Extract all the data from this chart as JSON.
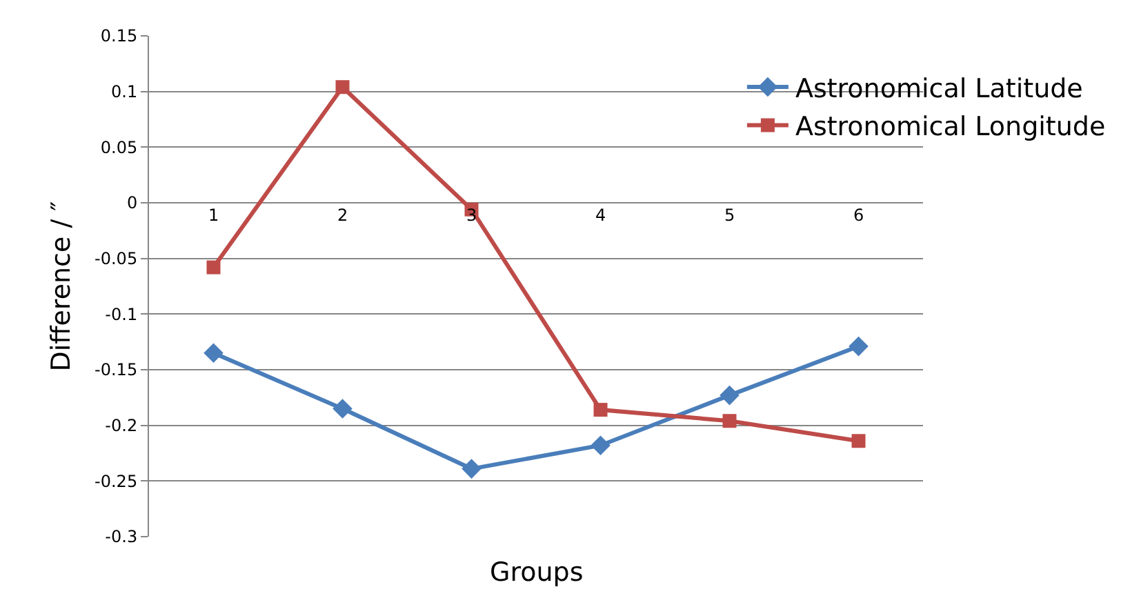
{
  "chart_data": {
    "type": "line",
    "xlabel": "Groups",
    "ylabel": "Difference / ″",
    "categories": [
      "1",
      "2",
      "3",
      "4",
      "5",
      "6"
    ],
    "series": [
      {
        "name": "Astronomical Latitude",
        "color": "#4a7ebb",
        "marker": "diamond",
        "values": [
          -0.135,
          -0.185,
          -0.239,
          -0.218,
          -0.173,
          -0.129
        ]
      },
      {
        "name": "Astronomical Longitude",
        "color": "#be4b48",
        "marker": "square",
        "values": [
          -0.058,
          0.104,
          -0.006,
          -0.186,
          -0.196,
          -0.214
        ]
      }
    ],
    "ylim": [
      -0.3,
      0.15
    ],
    "yticks": [
      -0.3,
      -0.25,
      -0.2,
      -0.15,
      -0.1,
      -0.05,
      0,
      0.05,
      0.1,
      0.15
    ],
    "grid": "y",
    "legend": "top right",
    "line_style": "solid"
  }
}
